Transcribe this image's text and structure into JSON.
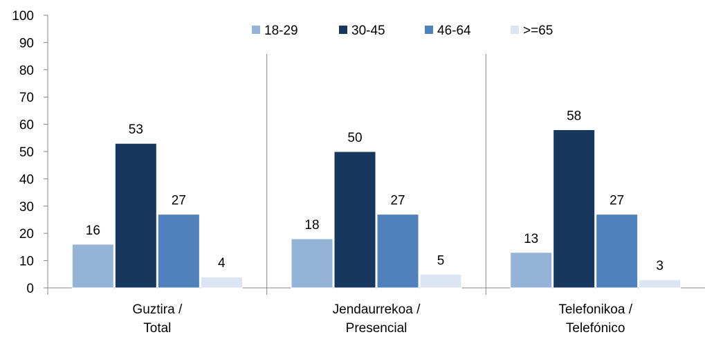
{
  "chart_data": {
    "type": "bar",
    "title": "",
    "xlabel": "",
    "ylabel": "",
    "ylim": [
      0,
      100
    ],
    "yticks": [
      0,
      10,
      20,
      30,
      40,
      50,
      60,
      70,
      80,
      90,
      100
    ],
    "grid": false,
    "legend_position": "top",
    "categories": [
      [
        "Guztira /",
        "Total"
      ],
      [
        "Jendaurrekoa /",
        "Presencial"
      ],
      [
        "Telefonikoa /",
        "Telefónico"
      ]
    ],
    "series": [
      {
        "name": "18-29",
        "color": "#95b3d7",
        "values": [
          16,
          18,
          13
        ]
      },
      {
        "name": "30-45",
        "color": "#17375e",
        "values": [
          53,
          50,
          58
        ]
      },
      {
        "name": "46-64",
        "color": "#4f81bd",
        "values": [
          27,
          27,
          27
        ]
      },
      {
        "name": ">=65",
        "color": "#dce6f2",
        "values": [
          4,
          5,
          3
        ]
      }
    ]
  }
}
